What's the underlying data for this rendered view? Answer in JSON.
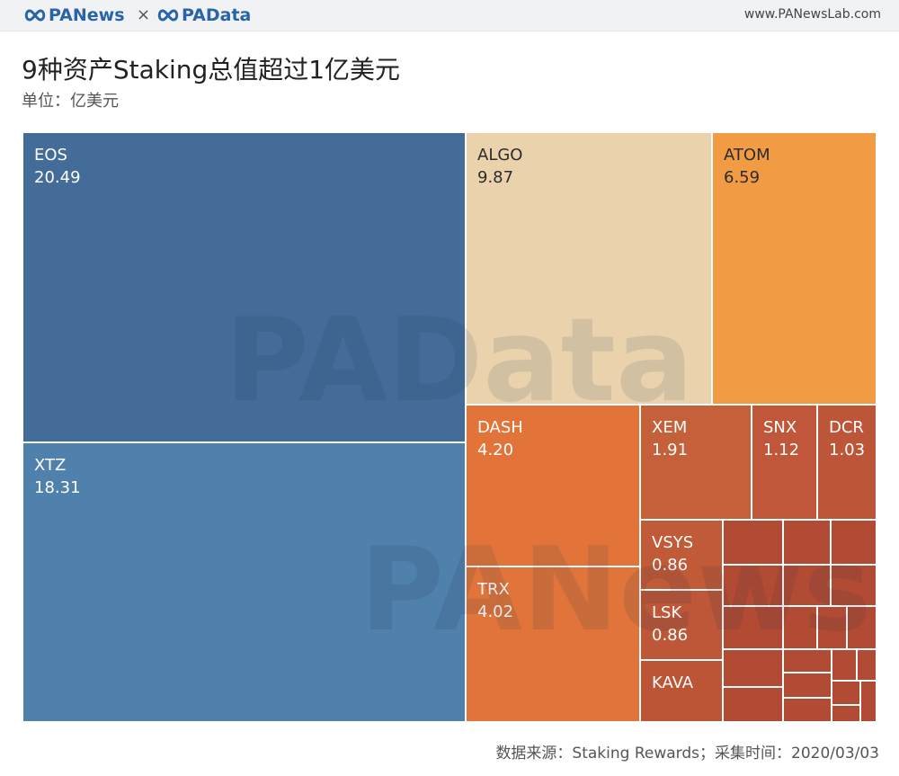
{
  "header": {
    "brand_left": "PANews",
    "separator": "×",
    "brand_right": "PAData",
    "url": "www.PANewsLab.com",
    "brand_color": "#2a64a8"
  },
  "title": "9种资产Staking总值超过1亿美元",
  "subtitle": "单位：亿美元",
  "source": "数据来源：Staking Rewards；采集时间：2020/03/03",
  "watermarks": [
    "PAData",
    "PANews"
  ],
  "chart_data": {
    "type": "treemap",
    "title": "9种资产Staking总值超过1亿美元",
    "unit": "亿美元",
    "items": [
      {
        "name": "EOS",
        "value": 20.49,
        "label": "20.49",
        "color": "#436d98",
        "text": "light"
      },
      {
        "name": "XTZ",
        "value": 18.31,
        "label": "18.31",
        "color": "#5080ac",
        "text": "light"
      },
      {
        "name": "ALGO",
        "value": 9.87,
        "label": "9.87",
        "color": "#ead2ad",
        "text": "dark"
      },
      {
        "name": "ATOM",
        "value": 6.59,
        "label": "6.59",
        "color": "#f19c44",
        "text": "dark"
      },
      {
        "name": "DASH",
        "value": 4.2,
        "label": "4.20",
        "color": "#e2743a",
        "text": "light"
      },
      {
        "name": "TRX",
        "value": 4.02,
        "label": "4.02",
        "color": "#e0743a",
        "text": "light"
      },
      {
        "name": "XEM",
        "value": 1.91,
        "label": "1.91",
        "color": "#c4603a",
        "text": "light"
      },
      {
        "name": "SNX",
        "value": 1.12,
        "label": "1.12",
        "color": "#c0573a",
        "text": "light"
      },
      {
        "name": "DCR",
        "value": 1.03,
        "label": "1.03",
        "color": "#bd5538",
        "text": "light"
      },
      {
        "name": "VSYS",
        "value": 0.86,
        "label": "0.86",
        "color": "#c05a37",
        "text": "light"
      },
      {
        "name": "LSK",
        "value": 0.86,
        "label": "0.86",
        "color": "#bd5737",
        "text": "light"
      },
      {
        "name": "KAVA",
        "value": null,
        "label": "",
        "color": "#bb5536",
        "text": "light"
      }
    ],
    "unlabeled_small_cells": 20,
    "unlabeled_color": "#b24b33"
  }
}
